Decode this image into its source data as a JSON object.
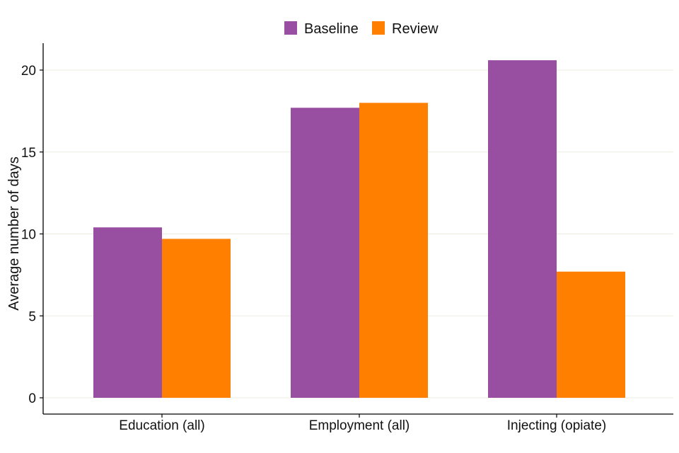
{
  "chart_data": {
    "type": "bar",
    "title": "",
    "xlabel": "",
    "ylabel": "Average number of days",
    "categories": [
      "Education (all)",
      "Employment (all)",
      "Injecting (opiate)"
    ],
    "series": [
      {
        "name": "Baseline",
        "color": "#994FA1",
        "values": [
          10.4,
          17.7,
          20.6
        ]
      },
      {
        "name": "Review",
        "color": "#FF7F00",
        "values": [
          9.7,
          18.0,
          7.7
        ]
      }
    ],
    "ylim": [
      0,
      21.7
    ],
    "yticks": [
      0,
      5,
      10,
      15,
      20
    ],
    "grid": "horizontal",
    "legend_position": "top-center"
  }
}
